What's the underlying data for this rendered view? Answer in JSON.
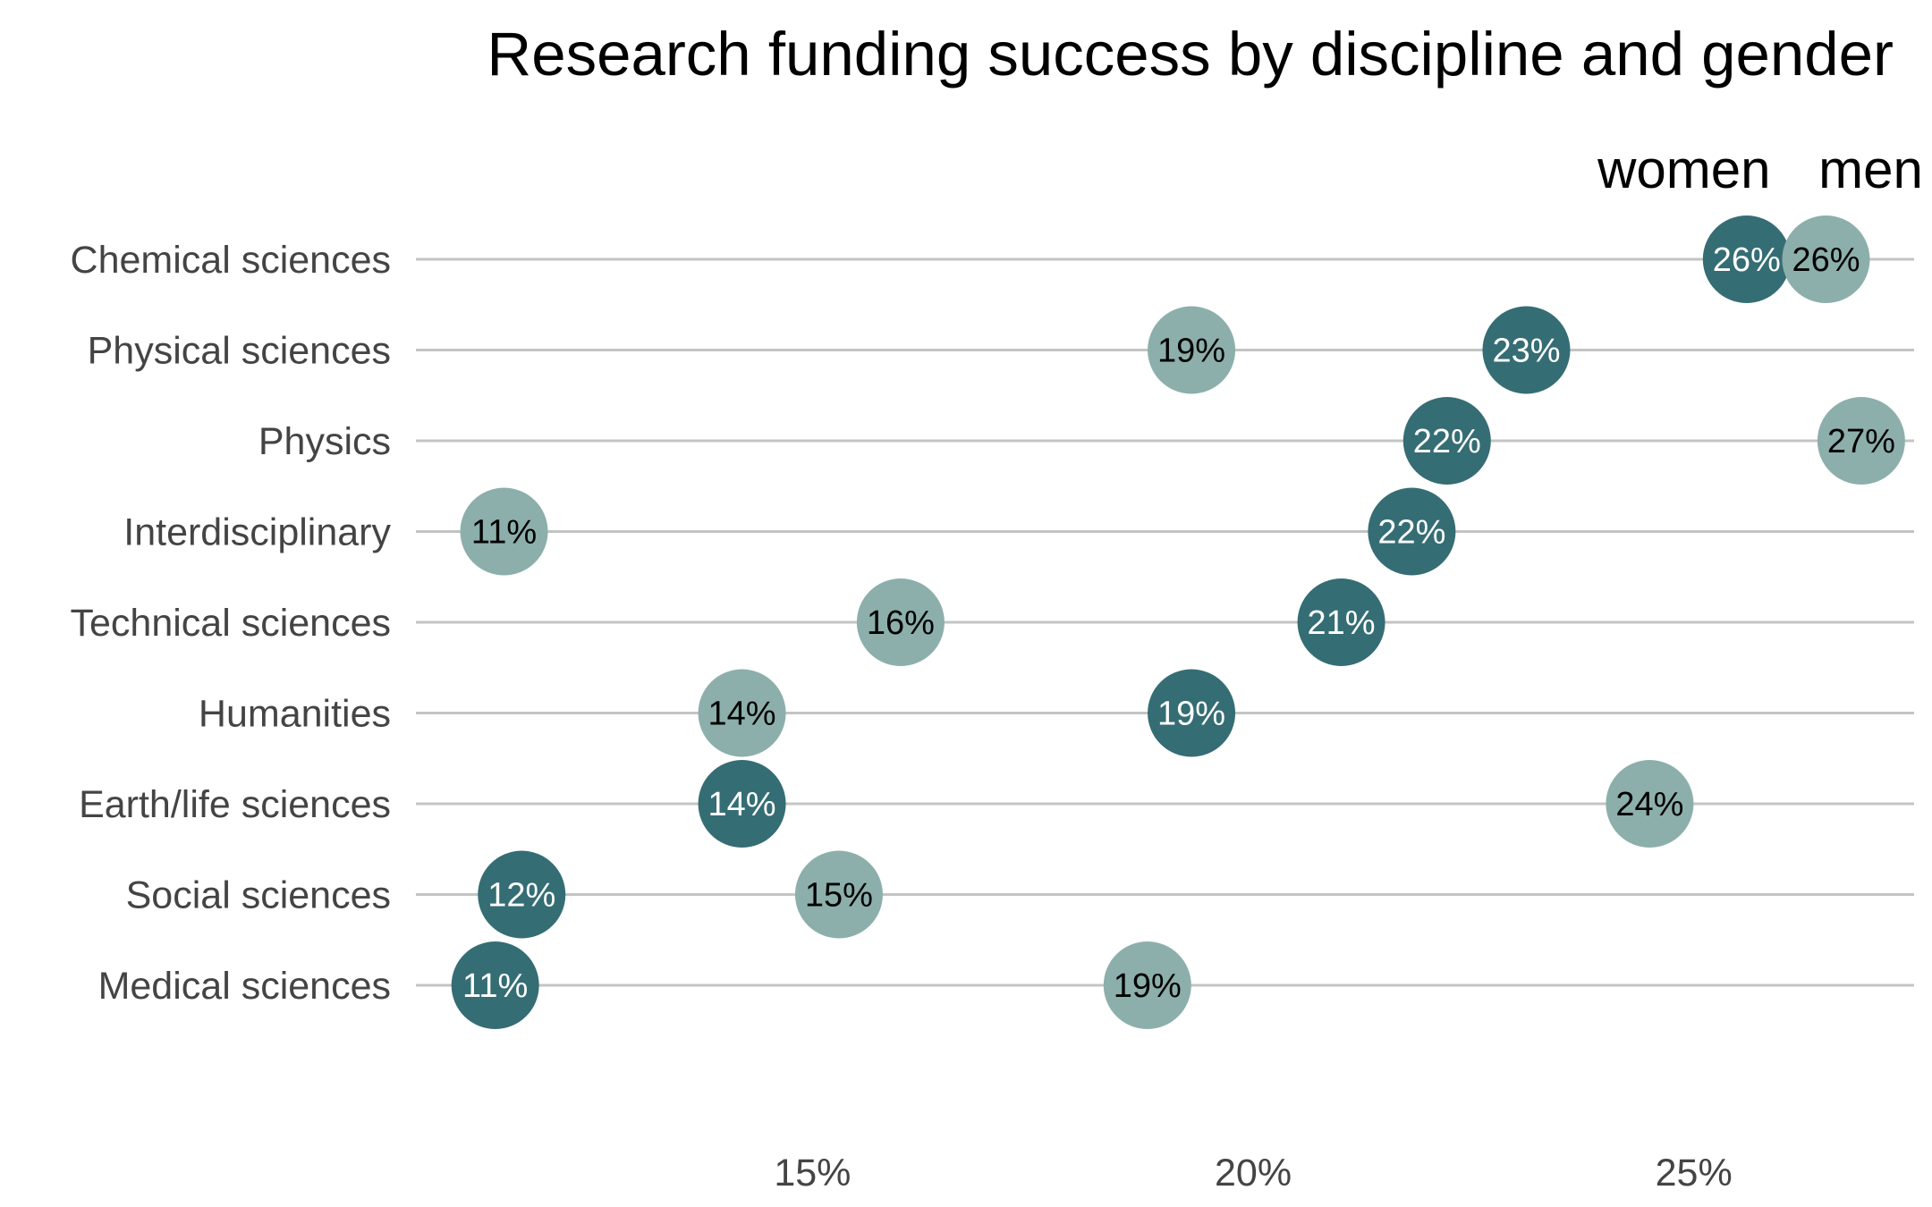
{
  "chart_data": {
    "type": "scatter",
    "title": "Research funding success by discipline and gender",
    "categories": [
      "Chemical sciences",
      "Physical sciences",
      "Physics",
      "Interdisciplinary",
      "Technical sciences",
      "Humanities",
      "Earth/life sciences",
      "Social sciences",
      "Medical sciences"
    ],
    "series": [
      {
        "name": "women",
        "color": "#356d74",
        "label_color": "#ffffff",
        "values": [
          25.6,
          23.1,
          22.2,
          21.8,
          21.0,
          19.3,
          14.2,
          11.7,
          11.4
        ],
        "labels": [
          "26%",
          "23%",
          "22%",
          "22%",
          "21%",
          "19%",
          "14%",
          "12%",
          "11%"
        ]
      },
      {
        "name": "men",
        "color": "#8cafab",
        "label_color": "#000000",
        "values": [
          26.5,
          19.3,
          26.9,
          11.5,
          16.0,
          14.2,
          24.5,
          15.3,
          18.8
        ],
        "labels": [
          "26%",
          "19%",
          "27%",
          "11%",
          "16%",
          "14%",
          "24%",
          "15%",
          "19%"
        ]
      }
    ],
    "x_ticks": [
      15,
      20,
      25
    ],
    "x_tick_labels": [
      "15%",
      "20%",
      "25%"
    ],
    "xlim": [
      10.5,
      27.5
    ],
    "xlabel": "",
    "ylabel": "",
    "grid": "horizontal",
    "legend_position": "top-right"
  }
}
